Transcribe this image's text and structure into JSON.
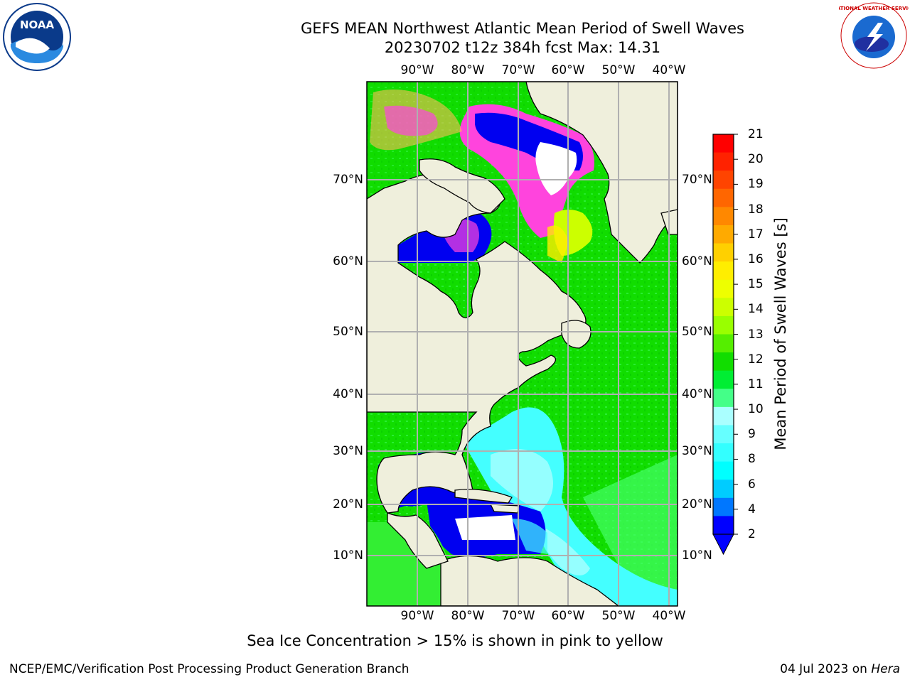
{
  "title_line1": "GEFS MEAN Northwest Atlantic Mean Period of Swell Waves",
  "title_line2": "20230702 t12z 384h fcst   Max: 14.31",
  "longitude_labels": [
    "90°W",
    "80°W",
    "70°W",
    "60°W",
    "50°W",
    "40°W"
  ],
  "latitude_labels": [
    "70°N",
    "60°N",
    "50°N",
    "40°N",
    "30°N",
    "20°N",
    "10°N"
  ],
  "colorbar": {
    "label": "Mean Period of Swell Waves [s]",
    "ticks": [
      "21",
      "20",
      "19",
      "18",
      "17",
      "16",
      "15",
      "14",
      "13",
      "12",
      "11",
      "10",
      "9",
      "8",
      "6",
      "4",
      "2"
    ],
    "colors_top_to_bottom": [
      "#ff0000",
      "#ff2200",
      "#ff4400",
      "#ff6600",
      "#ff8800",
      "#ffaa00",
      "#ffd000",
      "#ffee00",
      "#eeff00",
      "#ccff00",
      "#99ff00",
      "#55ee00",
      "#11dd00",
      "#00ee33",
      "#44ff88",
      "#aaffff",
      "#66ffff",
      "#33ffff",
      "#00ffff",
      "#00ccff",
      "#0077ff",
      "#0000ff"
    ]
  },
  "colors": {
    "land": "#efefdc",
    "ice": "#ffffff",
    "deep_blue": "#0000f0",
    "green": "#11dd00",
    "light_green": "#44ff66",
    "cyan": "#44ffff",
    "light_cyan": "#aaffff",
    "ice_pink": "#ff44dd",
    "ice_orange": "#ffbb55"
  },
  "logos": {
    "left": "noaa-logo",
    "right": "national-weather-service-logo",
    "left_text": "NOAA",
    "right_text": "NATIONAL WEATHER SERVICE"
  },
  "note": "Sea Ice Concentration > 15% is shown in pink to yellow",
  "footer_left": "NCEP/EMC/Verification Post Processing Product Generation Branch",
  "footer_right_date": "04 Jul 2023 on ",
  "footer_right_machine": "Hera"
}
